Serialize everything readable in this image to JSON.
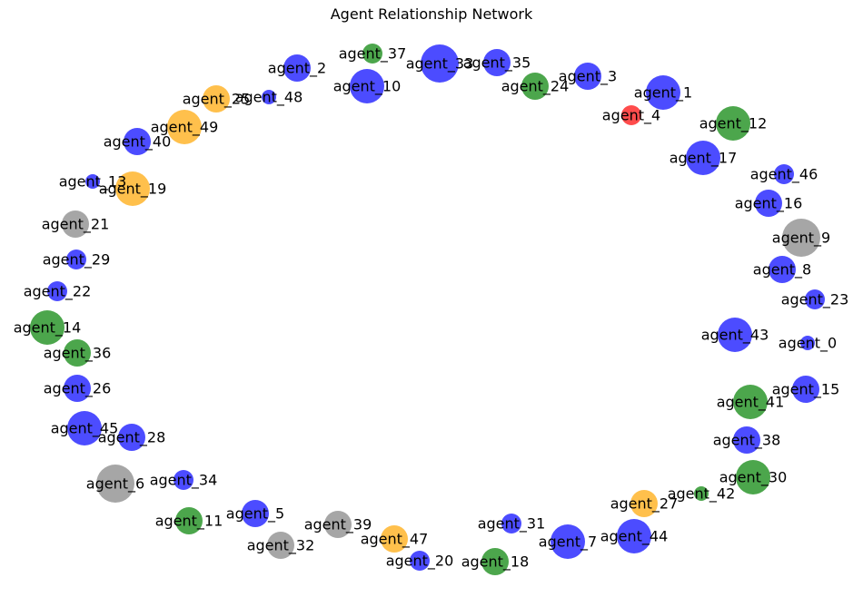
{
  "title": "Agent Relationship Network",
  "colors": {
    "blue": "#0000ff",
    "green": "#008000",
    "orange": "#ffa500",
    "gray": "#808080",
    "red": "#ff0000"
  },
  "nodes": [
    {
      "id": "agent_0",
      "color": "blue",
      "size": "xs"
    },
    {
      "id": "agent_1",
      "color": "blue",
      "size": "l"
    },
    {
      "id": "agent_2",
      "color": "blue",
      "size": "m"
    },
    {
      "id": "agent_3",
      "color": "blue",
      "size": "m"
    },
    {
      "id": "agent_4",
      "color": "red",
      "size": "s"
    },
    {
      "id": "agent_5",
      "color": "blue",
      "size": "m"
    },
    {
      "id": "agent_6",
      "color": "gray",
      "size": "xl"
    },
    {
      "id": "agent_7",
      "color": "blue",
      "size": "l"
    },
    {
      "id": "agent_8",
      "color": "blue",
      "size": "m"
    },
    {
      "id": "agent_9",
      "color": "gray",
      "size": "xl"
    },
    {
      "id": "agent_10",
      "color": "blue",
      "size": "l"
    },
    {
      "id": "agent_11",
      "color": "green",
      "size": "m"
    },
    {
      "id": "agent_12",
      "color": "green",
      "size": "l"
    },
    {
      "id": "agent_13",
      "color": "blue",
      "size": "xs"
    },
    {
      "id": "agent_14",
      "color": "green",
      "size": "l"
    },
    {
      "id": "agent_15",
      "color": "blue",
      "size": "m"
    },
    {
      "id": "agent_16",
      "color": "blue",
      "size": "m"
    },
    {
      "id": "agent_17",
      "color": "blue",
      "size": "l"
    },
    {
      "id": "agent_18",
      "color": "green",
      "size": "m"
    },
    {
      "id": "agent_19",
      "color": "orange",
      "size": "l"
    },
    {
      "id": "agent_20",
      "color": "blue",
      "size": "s"
    },
    {
      "id": "agent_21",
      "color": "gray",
      "size": "m"
    },
    {
      "id": "agent_22",
      "color": "blue",
      "size": "s"
    },
    {
      "id": "agent_23",
      "color": "blue",
      "size": "s"
    },
    {
      "id": "agent_24",
      "color": "green",
      "size": "m"
    },
    {
      "id": "agent_25",
      "color": "orange",
      "size": "m"
    },
    {
      "id": "agent_26",
      "color": "blue",
      "size": "m"
    },
    {
      "id": "agent_27",
      "color": "orange",
      "size": "m"
    },
    {
      "id": "agent_28",
      "color": "blue",
      "size": "m"
    },
    {
      "id": "agent_29",
      "color": "blue",
      "size": "s"
    },
    {
      "id": "agent_30",
      "color": "green",
      "size": "l"
    },
    {
      "id": "agent_31",
      "color": "blue",
      "size": "s"
    },
    {
      "id": "agent_32",
      "color": "gray",
      "size": "m"
    },
    {
      "id": "agent_33",
      "color": "blue",
      "size": "xl"
    },
    {
      "id": "agent_34",
      "color": "blue",
      "size": "s"
    },
    {
      "id": "agent_35",
      "color": "blue",
      "size": "m"
    },
    {
      "id": "agent_36",
      "color": "green",
      "size": "m"
    },
    {
      "id": "agent_37",
      "color": "green",
      "size": "s"
    },
    {
      "id": "agent_38",
      "color": "blue",
      "size": "m"
    },
    {
      "id": "agent_39",
      "color": "gray",
      "size": "m"
    },
    {
      "id": "agent_40",
      "color": "blue",
      "size": "m"
    },
    {
      "id": "agent_41",
      "color": "green",
      "size": "l"
    },
    {
      "id": "agent_42",
      "color": "green",
      "size": "xs"
    },
    {
      "id": "agent_43",
      "color": "blue",
      "size": "l"
    },
    {
      "id": "agent_44",
      "color": "blue",
      "size": "l"
    },
    {
      "id": "agent_45",
      "color": "blue",
      "size": "l"
    },
    {
      "id": "agent_46",
      "color": "blue",
      "size": "s"
    },
    {
      "id": "agent_47",
      "color": "orange",
      "size": "m"
    },
    {
      "id": "agent_48",
      "color": "blue",
      "size": "xs"
    },
    {
      "id": "agent_49",
      "color": "orange",
      "size": "l"
    }
  ]
}
